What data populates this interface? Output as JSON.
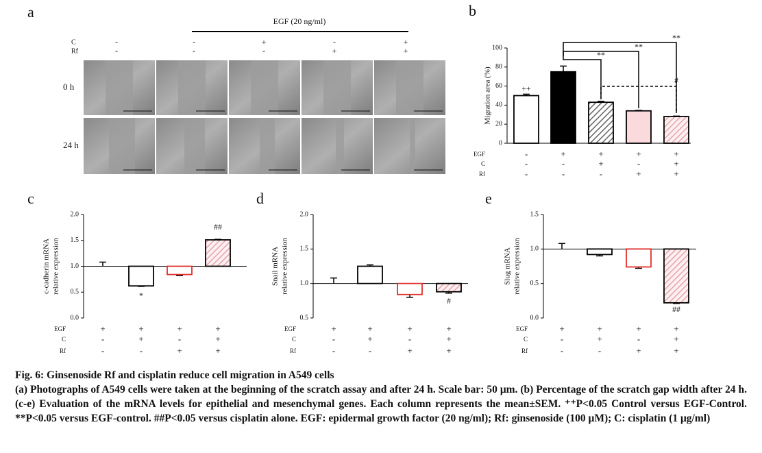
{
  "panel_a": {
    "label": "a",
    "egf": "EGF (20 ng/ml)",
    "rows": [
      {
        "name": "C",
        "signs": [
          "-",
          "-",
          "+",
          "-",
          "+"
        ]
      },
      {
        "name": "Rf",
        "signs": [
          "-",
          "-",
          "-",
          "+",
          "+"
        ]
      }
    ],
    "times": [
      "0 h",
      "24 h"
    ]
  },
  "chart_data": [
    {
      "type": "bar",
      "panel": "b",
      "ylabel": [
        "Migration area (%)"
      ],
      "ylim": [
        0,
        100
      ],
      "yticks": [
        0,
        20,
        40,
        60,
        80,
        100
      ],
      "baseline": 0,
      "values": [
        50,
        75,
        43,
        34,
        28
      ],
      "errors": [
        1.5,
        6,
        1,
        0.5,
        0.5
      ],
      "colors": [
        "#ffffff",
        "#000000",
        "#ffffff",
        "#fadadd",
        "#fdf0f1"
      ],
      "edge_colors": [
        "#000000",
        "#000000",
        "#000000",
        "#000000",
        "#000000"
      ],
      "hatch": [
        null,
        null,
        "#666666",
        null,
        "#e6a3aa"
      ],
      "rows": [
        {
          "name": "EGF",
          "signs": [
            "-",
            "+",
            "+",
            "+",
            "+"
          ]
        },
        {
          "name": "C",
          "signs": [
            "-",
            "-",
            "+",
            "-",
            "+"
          ]
        },
        {
          "name": "Rf",
          "signs": [
            "-",
            "-",
            "-",
            "+",
            "+"
          ]
        }
      ],
      "annotations": [
        "++",
        "**",
        "**",
        "**",
        "#"
      ]
    },
    {
      "type": "bar",
      "panel": "c",
      "ylabel": [
        "c-cadherin mRNA",
        "relative expression"
      ],
      "ylim": [
        0,
        2
      ],
      "yticks": [
        {
          "value": 0,
          "label": "0.0"
        },
        0.5,
        {
          "value": 1,
          "label": "1.0"
        },
        1.5,
        {
          "value": 2,
          "label": "2.0"
        }
      ],
      "baseline": 1,
      "values": [
        1.0,
        0.62,
        0.84,
        1.51
      ],
      "errors": [
        0.08,
        0.01,
        0.02,
        0.01
      ],
      "colors": [
        "#ffffff",
        "#ffffff",
        "#ffffff",
        "#fdf0f1"
      ],
      "edge_colors": [
        "#000000",
        "#000000",
        "#e0302a",
        "#000000"
      ],
      "hatch": [
        null,
        null,
        null,
        "#e6a3aa"
      ],
      "rows": [
        {
          "name": "EGF",
          "signs": [
            "+",
            "+",
            "+",
            "+"
          ]
        },
        {
          "name": "C",
          "signs": [
            "-",
            "+",
            "-",
            "+"
          ]
        },
        {
          "name": "Rf",
          "signs": [
            "-",
            "-",
            "+",
            "+"
          ]
        }
      ],
      "annotations": [
        "*",
        "##"
      ]
    },
    {
      "type": "bar",
      "panel": "d",
      "ylabel": [
        "Snail mRNA",
        "relative expression"
      ],
      "ylim": [
        0.5,
        2
      ],
      "yticks": [
        0.5,
        {
          "value": 1,
          "label": "1.0"
        },
        1.5,
        {
          "value": 2,
          "label": "2.0"
        }
      ],
      "baseline": 1,
      "values": [
        1.0,
        1.25,
        0.84,
        0.88
      ],
      "errors": [
        0.08,
        0.02,
        0.04,
        0.02
      ],
      "colors": [
        "#ffffff",
        "#ffffff",
        "#ffffff",
        "#fdf0f1"
      ],
      "edge_colors": [
        "#000000",
        "#000000",
        "#e0302a",
        "#000000"
      ],
      "hatch": [
        null,
        null,
        null,
        "#e6a3aa"
      ],
      "rows": [
        {
          "name": "EGF",
          "signs": [
            "+",
            "+",
            "+",
            "+"
          ]
        },
        {
          "name": "C",
          "signs": [
            "-",
            "+",
            "-",
            "+"
          ]
        },
        {
          "name": "Rf",
          "signs": [
            "-",
            "-",
            "+",
            "+"
          ]
        }
      ],
      "annotations": [
        "#"
      ]
    },
    {
      "type": "bar",
      "panel": "e",
      "ylabel": [
        "Slug mRNA",
        "relative expression"
      ],
      "ylim": [
        0,
        1.5
      ],
      "yticks": [
        {
          "value": 0,
          "label": "0.0"
        },
        0.5,
        {
          "value": 1,
          "label": "1.0"
        },
        1.5
      ],
      "baseline": 1,
      "values": [
        1.0,
        0.92,
        0.74,
        0.22
      ],
      "errors": [
        0.08,
        0.02,
        0.02,
        0.01
      ],
      "colors": [
        "#ffffff",
        "#ffffff",
        "#ffffff",
        "#fdf0f1"
      ],
      "edge_colors": [
        "#000000",
        "#000000",
        "#e0302a",
        "#000000"
      ],
      "hatch": [
        null,
        null,
        null,
        "#e6a3aa"
      ],
      "rows": [
        {
          "name": "EGF",
          "signs": [
            "+",
            "+",
            "+",
            "+"
          ]
        },
        {
          "name": "C",
          "signs": [
            "-",
            "+",
            "-",
            "+"
          ]
        },
        {
          "name": "Rf",
          "signs": [
            "-",
            "-",
            "+",
            "+"
          ]
        }
      ],
      "annotations": [
        "##"
      ]
    }
  ],
  "caption": {
    "title": "Fig. 6: Ginsenoside Rf and cisplatin reduce cell migration in A549 cells",
    "body": "(a) Photographs of A549 cells were taken at the beginning of the scratch assay and after 24 h. Scale bar: 50 μm. (b) Percentage of the scratch gap width after 24 h. (c-e) Evaluation of the mRNA levels for epithelial and mesenchymal genes. Each column represents the mean±SEM. ⁺⁺P<0.05 Control versus EGF-Control. **P<0.05 versus EGF-control. ##P<0.05 versus cisplatin alone. EGF: epidermal growth factor (20 ng/ml); Rf: ginsenoside (100 μM); C: cisplatin (1 μg/ml)"
  }
}
